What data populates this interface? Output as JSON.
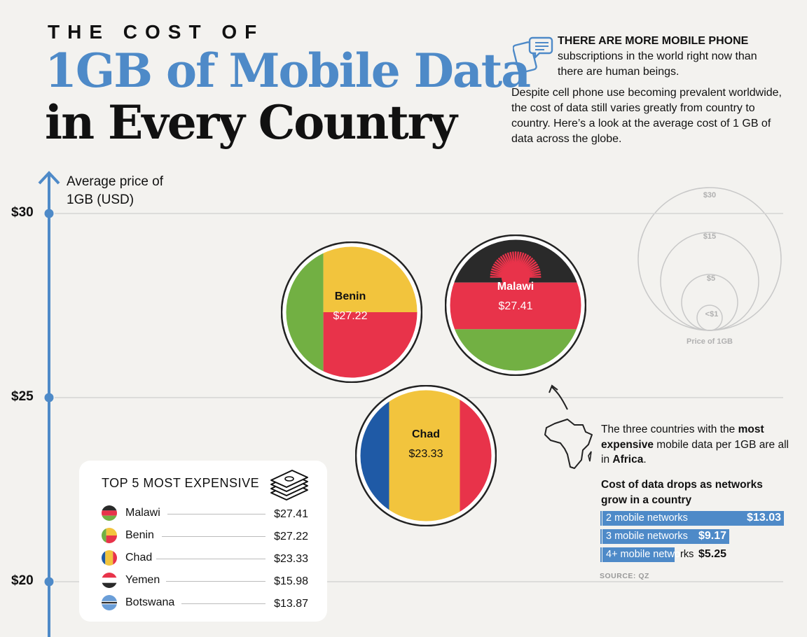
{
  "title": {
    "line1": "THE COST OF",
    "line2": "1GB of Mobile Data",
    "line3": "in Every Country"
  },
  "intro": {
    "headline": "THERE ARE MORE MOBILE PHONE",
    "headline_rest": "subscriptions in the world right now than there are human beings.",
    "body": "Despite cell phone use becoming prevalent worldwide, the cost of data still varies greatly from country to country. Here’s a look at the average cost of 1 GB of data across the globe.",
    "icon": "phone-chat-icon"
  },
  "legend": {
    "labels": [
      "$30",
      "$15",
      "$5",
      "<$1"
    ],
    "caption": "Price of 1GB"
  },
  "chart_data": {
    "type": "scatter",
    "ylabel": "Average price of 1GB (USD)",
    "yticks": [
      "$30",
      "$25",
      "$20"
    ],
    "ylim": [
      18.5,
      31.2
    ],
    "points": [
      {
        "country": "Benin",
        "value": 27.22,
        "label": "$27.22"
      },
      {
        "country": "Malawi",
        "value": 27.41,
        "label": "$27.41"
      },
      {
        "country": "Chad",
        "value": 23.33,
        "label": "$23.33"
      }
    ]
  },
  "top5": {
    "title": "TOP 5 MOST EXPENSIVE",
    "rows": [
      {
        "name": "Malawi",
        "value": "$27.41"
      },
      {
        "name": "Benin",
        "value": "$27.22"
      },
      {
        "name": "Chad",
        "value": "$23.33"
      },
      {
        "name": "Yemen",
        "value": "$15.98"
      },
      {
        "name": "Botswana",
        "value": "$13.87"
      }
    ]
  },
  "africa": {
    "part1": "The three countries with the ",
    "bold": "most expensive",
    "part2": " mobile data per 1GB are all in ",
    "bold2": "Africa",
    "part3": "."
  },
  "networks": {
    "title": "Cost of data drops as networks grow in a country",
    "rows": [
      {
        "label": "2 mobile networks",
        "value": "$13.03",
        "amount": 13.03
      },
      {
        "label": "3 mobile networks",
        "value": "$9.17",
        "amount": 9.17
      },
      {
        "label": "4+ mobile networks",
        "value": "$5.25",
        "amount": 5.25
      }
    ]
  },
  "source": "SOURCE: QZ",
  "colors": {
    "accent": "#4e8ac8",
    "red": "#e8334a",
    "yellow": "#f2c43d",
    "green": "#72b043",
    "blue": "#1f5aa6",
    "black": "#2a2a2a"
  }
}
